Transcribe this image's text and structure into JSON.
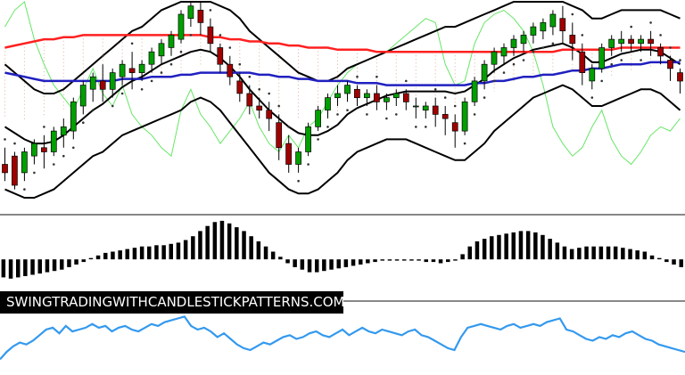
{
  "watermark": "SWINGTRADINGWITHCANDLESTICKPATTERNS.COM",
  "chart_data": [
    {
      "type": "candlestick",
      "panel": "price",
      "title": "",
      "colors": {
        "bull": "#00a000",
        "bear": "#a00000",
        "ma_fast": "#ff2020",
        "ma_slow": "#2020c0",
        "bollinger": "#000000",
        "envelope_upper": "#66e666",
        "envelope_lower": "#66e666",
        "tenkan": "#ff4040",
        "kijun": "#6060ff",
        "cloud_dots": "#d99a7a",
        "sar": "#333333"
      },
      "ylim": [
        0,
        100
      ],
      "candles": [
        [
          22,
          30,
          18,
          14
        ],
        [
          26,
          28,
          12,
          10
        ],
        [
          18,
          30,
          28,
          14
        ],
        [
          26,
          34,
          32,
          22
        ],
        [
          30,
          36,
          28,
          20
        ],
        [
          28,
          40,
          38,
          26
        ],
        [
          36,
          44,
          40,
          30
        ],
        [
          38,
          54,
          52,
          34
        ],
        [
          50,
          62,
          60,
          46
        ],
        [
          58,
          66,
          64,
          52
        ],
        [
          62,
          70,
          58,
          52
        ],
        [
          58,
          68,
          66,
          54
        ],
        [
          64,
          72,
          70,
          60
        ],
        [
          68,
          76,
          66,
          58
        ],
        [
          66,
          72,
          70,
          62
        ],
        [
          70,
          78,
          76,
          66
        ],
        [
          74,
          82,
          80,
          70
        ],
        [
          78,
          86,
          84,
          74
        ],
        [
          82,
          96,
          94,
          80
        ],
        [
          92,
          100,
          98,
          88
        ],
        [
          96,
          100,
          90,
          84
        ],
        [
          88,
          92,
          80,
          76
        ],
        [
          78,
          80,
          70,
          66
        ],
        [
          70,
          74,
          64,
          60
        ],
        [
          62,
          66,
          56,
          52
        ],
        [
          56,
          60,
          50,
          46
        ],
        [
          50,
          54,
          48,
          44
        ],
        [
          48,
          52,
          44,
          38
        ],
        [
          42,
          46,
          30,
          24
        ],
        [
          32,
          36,
          22,
          18
        ],
        [
          22,
          30,
          28,
          18
        ],
        [
          28,
          42,
          40,
          26
        ],
        [
          40,
          50,
          48,
          38
        ],
        [
          48,
          56,
          54,
          44
        ],
        [
          54,
          60,
          56,
          50
        ],
        [
          56,
          62,
          60,
          52
        ],
        [
          58,
          60,
          54,
          50
        ],
        [
          54,
          58,
          56,
          50
        ],
        [
          56,
          60,
          52,
          48
        ],
        [
          52,
          56,
          54,
          48
        ],
        [
          54,
          58,
          56,
          50
        ],
        [
          56,
          58,
          52,
          48
        ],
        [
          50,
          54,
          50,
          44
        ],
        [
          48,
          52,
          50,
          44
        ],
        [
          50,
          54,
          46,
          40
        ],
        [
          46,
          50,
          44,
          36
        ],
        [
          42,
          46,
          38,
          30
        ],
        [
          38,
          54,
          52,
          36
        ],
        [
          52,
          64,
          62,
          50
        ],
        [
          62,
          72,
          70,
          58
        ],
        [
          70,
          78,
          76,
          66
        ],
        [
          74,
          80,
          78,
          70
        ],
        [
          78,
          84,
          82,
          74
        ],
        [
          80,
          86,
          84,
          76
        ],
        [
          84,
          90,
          88,
          80
        ],
        [
          86,
          92,
          90,
          82
        ],
        [
          88,
          96,
          94,
          84
        ],
        [
          92,
          98,
          86,
          80
        ],
        [
          84,
          90,
          80,
          72
        ],
        [
          76,
          80,
          66,
          60
        ],
        [
          62,
          70,
          68,
          58
        ],
        [
          68,
          80,
          78,
          66
        ],
        [
          78,
          84,
          82,
          74
        ],
        [
          80,
          86,
          82,
          76
        ],
        [
          82,
          84,
          80,
          76
        ],
        [
          80,
          84,
          82,
          76
        ],
        [
          82,
          86,
          80,
          74
        ],
        [
          78,
          80,
          74,
          70
        ],
        [
          72,
          74,
          68,
          62
        ],
        [
          66,
          68,
          62,
          56
        ]
      ],
      "ma_fast": [
        78,
        79,
        80,
        81,
        82,
        82,
        83,
        83,
        84,
        84,
        84,
        84,
        84,
        84,
        84,
        84,
        84,
        84,
        84,
        84,
        84,
        83,
        83,
        82,
        82,
        81,
        81,
        80,
        80,
        79,
        79,
        78,
        78,
        78,
        77,
        77,
        77,
        77,
        76,
        76,
        76,
        76,
        76,
        76,
        76,
        76,
        76,
        76,
        76,
        76,
        76,
        76,
        76,
        76,
        76,
        76,
        76,
        77,
        77,
        77,
        77,
        77,
        77,
        78,
        78,
        78,
        78,
        78,
        78,
        78
      ],
      "ma_slow": [
        66,
        65,
        64,
        63,
        62,
        62,
        62,
        62,
        62,
        62,
        62,
        62,
        63,
        63,
        63,
        64,
        64,
        64,
        65,
        65,
        66,
        66,
        66,
        66,
        66,
        66,
        65,
        65,
        64,
        64,
        63,
        63,
        62,
        62,
        62,
        62,
        61,
        61,
        61,
        60,
        60,
        60,
        60,
        60,
        60,
        60,
        60,
        60,
        61,
        61,
        62,
        62,
        63,
        64,
        64,
        65,
        65,
        66,
        67,
        67,
        68,
        68,
        69,
        70,
        70,
        70,
        71,
        71,
        71,
        71
      ],
      "bb_upper": [
        70,
        66,
        62,
        58,
        56,
        56,
        58,
        62,
        66,
        70,
        74,
        78,
        82,
        86,
        88,
        92,
        96,
        98,
        100,
        100,
        100,
        100,
        98,
        96,
        92,
        86,
        82,
        78,
        74,
        70,
        66,
        64,
        62,
        62,
        64,
        68,
        70,
        72,
        74,
        76,
        78,
        80,
        82,
        84,
        86,
        88,
        88,
        90,
        92,
        94,
        96,
        98,
        100,
        100,
        100,
        100,
        100,
        100,
        98,
        96,
        92,
        92,
        94,
        96,
        96,
        96,
        96,
        96,
        94,
        92
      ],
      "bb_lower": [
        10,
        8,
        6,
        6,
        8,
        10,
        14,
        18,
        22,
        26,
        28,
        32,
        36,
        38,
        40,
        42,
        44,
        46,
        48,
        52,
        54,
        52,
        48,
        42,
        36,
        30,
        24,
        18,
        14,
        10,
        8,
        8,
        10,
        14,
        18,
        24,
        28,
        30,
        32,
        34,
        34,
        34,
        32,
        30,
        28,
        26,
        24,
        24,
        28,
        32,
        38,
        42,
        46,
        50,
        54,
        56,
        58,
        60,
        58,
        54,
        50,
        50,
        52,
        54,
        56,
        58,
        58,
        56,
        52,
        48
      ],
      "envelope_green": [
        88,
        96,
        100,
        82,
        70,
        60,
        54,
        48,
        58,
        68,
        56,
        50,
        60,
        46,
        40,
        36,
        30,
        26,
        48,
        58,
        46,
        40,
        32,
        38,
        44,
        52,
        40,
        32,
        28,
        36,
        30,
        40,
        44,
        52,
        60,
        66,
        70,
        72,
        74,
        76,
        80,
        84,
        88,
        92,
        90,
        70,
        60,
        62,
        80,
        90,
        94,
        96,
        92,
        86,
        76,
        60,
        40,
        32,
        26,
        30,
        40,
        48,
        34,
        26,
        22,
        28,
        36,
        40,
        38,
        44
      ]
    },
    {
      "type": "bar",
      "panel": "oscillator",
      "title": "",
      "colors": {
        "bars": "#000000"
      },
      "values": [
        -14,
        -15,
        -14,
        -13,
        -12,
        -11,
        -10,
        -9,
        -8,
        -6,
        -4,
        -2,
        1,
        3,
        5,
        6,
        7,
        8,
        9,
        10,
        10,
        11,
        11,
        12,
        13,
        15,
        18,
        22,
        26,
        29,
        30,
        28,
        25,
        22,
        18,
        14,
        10,
        6,
        2,
        -3,
        -6,
        -8,
        -10,
        -10,
        -9,
        -8,
        -7,
        -6,
        -5,
        -4,
        -3,
        -2,
        -1,
        -1,
        -1,
        -1,
        -1,
        -1,
        -2,
        -2,
        -3,
        -2,
        -1,
        4,
        10,
        14,
        16,
        18,
        19,
        20,
        21,
        22,
        22,
        21,
        19,
        16,
        13,
        10,
        8,
        9,
        10,
        10,
        10,
        10,
        10,
        9,
        8,
        7,
        6,
        3,
        1,
        -2,
        -4,
        -6
      ],
      "ylim": [
        -20,
        32
      ]
    },
    {
      "type": "line",
      "panel": "rsi",
      "title": "",
      "colors": {
        "line": "#3399ee"
      },
      "values": [
        14,
        22,
        28,
        32,
        30,
        34,
        40,
        46,
        48,
        42,
        50,
        44,
        46,
        48,
        52,
        48,
        50,
        44,
        48,
        50,
        46,
        44,
        48,
        52,
        50,
        54,
        56,
        58,
        60,
        50,
        46,
        48,
        44,
        38,
        42,
        36,
        30,
        26,
        24,
        28,
        32,
        30,
        34,
        38,
        40,
        36,
        38,
        42,
        44,
        40,
        38,
        42,
        46,
        40,
        44,
        48,
        44,
        42,
        46,
        44,
        42,
        40,
        44,
        46,
        40,
        38,
        34,
        30,
        26,
        24,
        38,
        48,
        50,
        52,
        50,
        48,
        46,
        50,
        52,
        48,
        50,
        52,
        50,
        54,
        56,
        58,
        46,
        44,
        40,
        36,
        34,
        38,
        36,
        40,
        38,
        42,
        44,
        40,
        36,
        34,
        30,
        28,
        26,
        24,
        22
      ],
      "ylim": [
        0,
        70
      ]
    }
  ]
}
